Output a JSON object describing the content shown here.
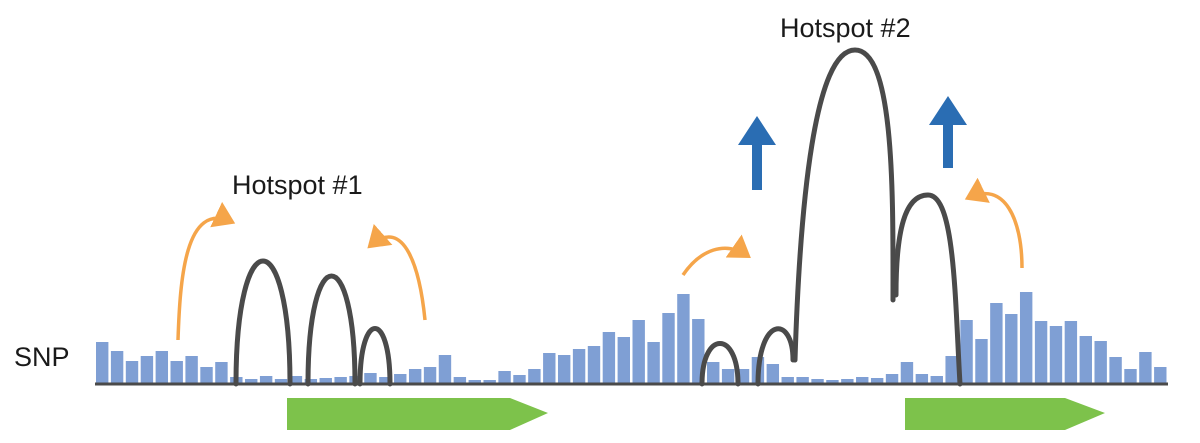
{
  "hotspots": [
    {
      "label": "Hotspot #1"
    },
    {
      "label": "Hotspot #2"
    }
  ],
  "snp_track": {
    "label": "SNP",
    "heights": [
      41,
      32,
      22,
      27,
      32,
      22,
      27,
      16,
      21,
      6,
      4,
      7,
      4,
      7,
      4,
      5,
      6,
      7,
      10,
      6,
      9,
      14,
      16,
      28,
      6,
      3,
      3,
      12,
      8,
      14,
      30,
      28,
      34,
      37,
      51,
      46,
      63,
      41,
      70,
      89,
      64,
      21,
      14,
      14,
      26,
      19,
      6,
      6,
      4,
      3,
      4,
      6,
      5,
      9,
      21,
      9,
      7,
      27,
      63,
      44,
      80,
      69,
      91,
      62,
      57,
      62,
      47,
      42,
      26,
      14,
      31,
      16
    ]
  }
}
